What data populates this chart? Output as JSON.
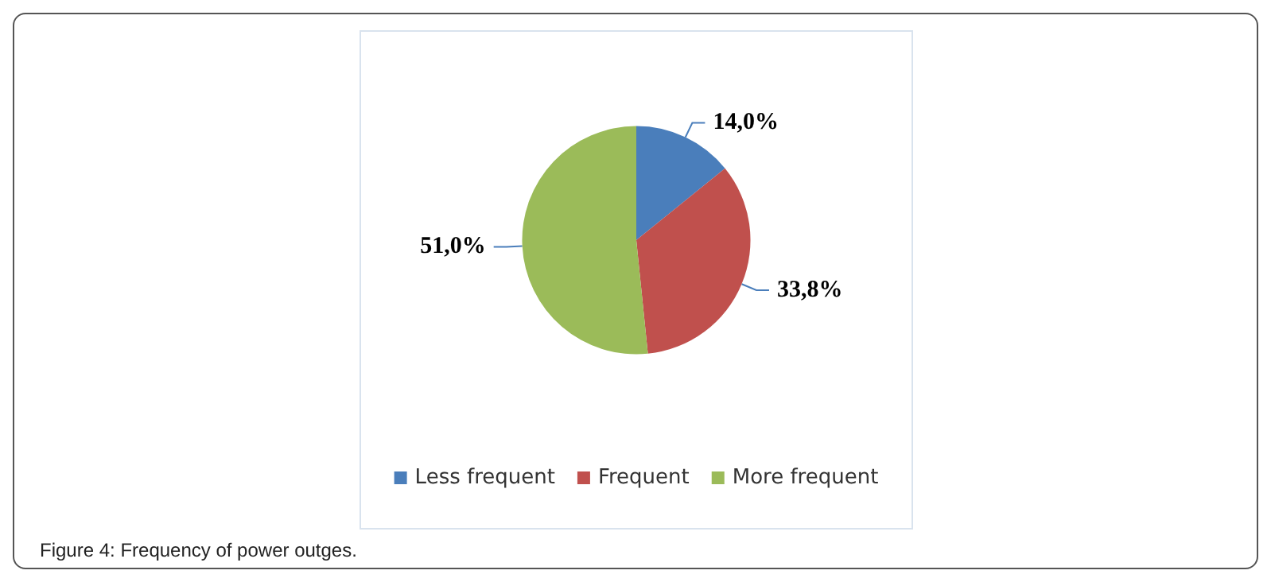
{
  "chart_data": {
    "type": "pie",
    "categories": [
      "Less frequent",
      "Frequent",
      "More frequent"
    ],
    "values": [
      14.0,
      33.8,
      51.0
    ],
    "value_labels": [
      "14,0%",
      "33,8%",
      "51,0%"
    ],
    "colors": [
      "#4a7ebb",
      "#c0504d",
      "#9bbb59"
    ],
    "legend": "bottom",
    "annotations": [
      "Figure 4: Frequency of power outges."
    ]
  }
}
